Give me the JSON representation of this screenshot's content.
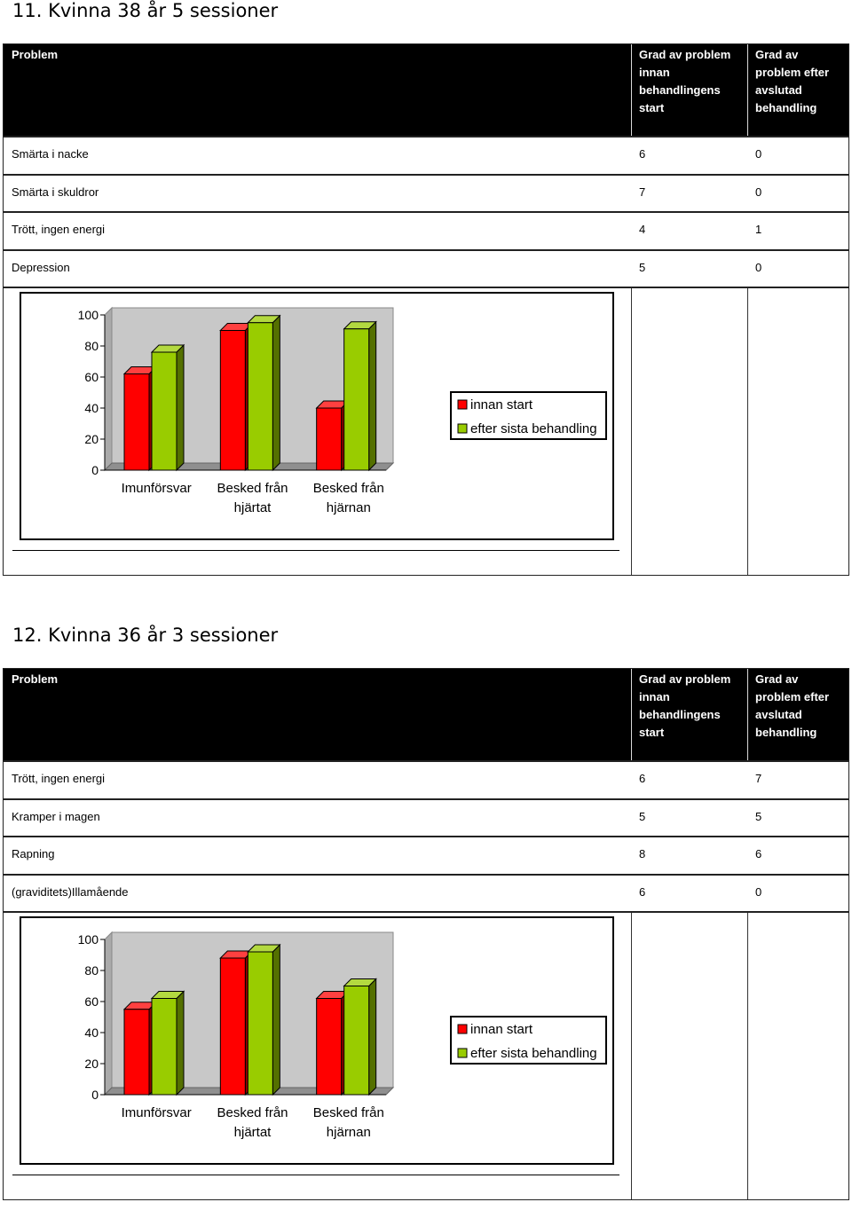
{
  "sections": [
    {
      "title": "11. Kvinna 38 år  5 sessioner",
      "table": {
        "headers": [
          "Problem",
          "Grad av problem innan behandlingens start",
          "Grad av problem efter avslutad behandling"
        ],
        "header_lines": [
          [
            "Problem"
          ],
          [
            "Grad av problem",
            "innan",
            "behandlingens",
            "start"
          ],
          [
            "Grad av",
            "problem efter",
            "avslutad",
            "behandling"
          ]
        ],
        "rows": [
          [
            "Smärta i nacke",
            "6",
            "0"
          ],
          [
            "Smärta i skuldror",
            "7",
            "0"
          ],
          [
            "Trött, ingen energi",
            "4",
            "1"
          ],
          [
            "Depression",
            "5",
            "0"
          ]
        ]
      },
      "chart_data": {
        "type": "bar",
        "categories": [
          "Imunförsvar",
          "Besked från hjärtat",
          "Besked från hjärnan"
        ],
        "category_lines": [
          [
            "Imunförsvar"
          ],
          [
            "Besked från",
            "hjärtat"
          ],
          [
            "Besked från",
            "hjärnan"
          ]
        ],
        "series": [
          {
            "name": "innan start",
            "values": [
              62,
              90,
              40
            ],
            "color": "#ff0000"
          },
          {
            "name": "efter sista behandling",
            "values": [
              76,
              95,
              91
            ],
            "color": "#99cc00"
          }
        ],
        "ylim": [
          0,
          100
        ],
        "yticks": [
          "0",
          "20",
          "40",
          "60",
          "80",
          "100"
        ],
        "legend": "right",
        "grid": false
      }
    },
    {
      "title": "12. Kvinna 36 år  3 sessioner",
      "table": {
        "headers": [
          "Problem",
          "Grad av problem innan behandlingens start",
          "Grad av problem efter avslutad behandling"
        ],
        "header_lines": [
          [
            "Problem"
          ],
          [
            "Grad av problem",
            "innan",
            "behandlingens",
            "start"
          ],
          [
            "Grad av",
            "problem efter",
            "avslutad",
            "behandling"
          ]
        ],
        "rows": [
          [
            "Trött, ingen energi",
            "6",
            "7"
          ],
          [
            "Kramper i magen",
            "5",
            "5"
          ],
          [
            "Rapning",
            "8",
            "6"
          ],
          [
            "(graviditets)Illamående",
            "6",
            "0"
          ]
        ]
      },
      "chart_data": {
        "type": "bar",
        "categories": [
          "Imunförsvar",
          "Besked från hjärtat",
          "Besked från hjärnan"
        ],
        "category_lines": [
          [
            "Imunförsvar"
          ],
          [
            "Besked från",
            "hjärtat"
          ],
          [
            "Besked från",
            "hjärnan"
          ]
        ],
        "series": [
          {
            "name": "innan start",
            "values": [
              55,
              88,
              62
            ],
            "color": "#ff0000"
          },
          {
            "name": "efter sista behandling",
            "values": [
              62,
              92,
              70
            ],
            "color": "#99cc00"
          }
        ],
        "ylim": [
          0,
          100
        ],
        "yticks": [
          "0",
          "20",
          "40",
          "60",
          "80",
          "100"
        ],
        "legend": "right",
        "grid": false
      }
    }
  ]
}
